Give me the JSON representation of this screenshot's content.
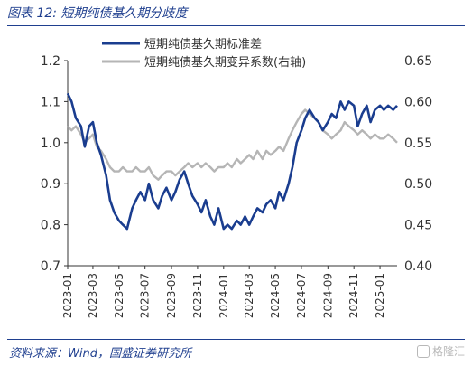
{
  "figure": {
    "title": "图表 12: 短期纯债基久期分歧度",
    "source": "资料来源：Wind，国盛证券研究所",
    "watermark": "格隆汇"
  },
  "colors": {
    "series_primary": "#1a3d8f",
    "series_secondary": "#b5b5b5",
    "title_blue": "#1f3f8f",
    "axis": "#333333"
  },
  "chart_data": {
    "type": "line",
    "x_ticks": [
      "2023-01",
      "2023-03",
      "2023-05",
      "2023-07",
      "2023-09",
      "2023-11",
      "2024-01",
      "2024-03",
      "2024-05",
      "2024-07",
      "2024-09",
      "2024-11",
      "2025-01"
    ],
    "x_range": [
      "2023-01-01",
      "2025-02-10"
    ],
    "y_left": {
      "ylim": [
        0.7,
        1.2
      ],
      "ticks": [
        "0.7",
        "0.8",
        "0.9",
        "1.0",
        "1.1",
        "1.2"
      ]
    },
    "y_right": {
      "ylim": [
        0.4,
        0.65
      ],
      "ticks": [
        "0.40",
        "0.45",
        "0.50",
        "0.55",
        "0.60",
        "0.65"
      ]
    },
    "legend_position": "top-center",
    "series": [
      {
        "name": "短期纯债基久期标准差",
        "axis": "left",
        "points": [
          [
            "2023-01-01",
            1.12
          ],
          [
            "2023-01-10",
            1.1
          ],
          [
            "2023-01-20",
            1.06
          ],
          [
            "2023-02-01",
            1.04
          ],
          [
            "2023-02-10",
            0.99
          ],
          [
            "2023-02-20",
            1.04
          ],
          [
            "2023-03-01",
            1.05
          ],
          [
            "2023-03-10",
            1.0
          ],
          [
            "2023-03-20",
            0.97
          ],
          [
            "2023-04-01",
            0.92
          ],
          [
            "2023-04-10",
            0.86
          ],
          [
            "2023-04-20",
            0.83
          ],
          [
            "2023-05-01",
            0.81
          ],
          [
            "2023-05-10",
            0.8
          ],
          [
            "2023-05-20",
            0.79
          ],
          [
            "2023-06-01",
            0.84
          ],
          [
            "2023-06-10",
            0.86
          ],
          [
            "2023-06-20",
            0.88
          ],
          [
            "2023-07-01",
            0.86
          ],
          [
            "2023-07-10",
            0.9
          ],
          [
            "2023-07-20",
            0.86
          ],
          [
            "2023-08-01",
            0.84
          ],
          [
            "2023-08-10",
            0.87
          ],
          [
            "2023-08-20",
            0.89
          ],
          [
            "2023-09-01",
            0.86
          ],
          [
            "2023-09-10",
            0.88
          ],
          [
            "2023-09-20",
            0.91
          ],
          [
            "2023-10-01",
            0.93
          ],
          [
            "2023-10-10",
            0.9
          ],
          [
            "2023-10-20",
            0.87
          ],
          [
            "2023-11-01",
            0.85
          ],
          [
            "2023-11-10",
            0.83
          ],
          [
            "2023-11-20",
            0.86
          ],
          [
            "2023-12-01",
            0.82
          ],
          [
            "2023-12-10",
            0.8
          ],
          [
            "2023-12-20",
            0.84
          ],
          [
            "2024-01-01",
            0.79
          ],
          [
            "2024-01-10",
            0.8
          ],
          [
            "2024-01-20",
            0.79
          ],
          [
            "2024-02-01",
            0.81
          ],
          [
            "2024-02-10",
            0.8
          ],
          [
            "2024-02-20",
            0.82
          ],
          [
            "2024-03-01",
            0.8
          ],
          [
            "2024-03-10",
            0.82
          ],
          [
            "2024-03-20",
            0.84
          ],
          [
            "2024-04-01",
            0.83
          ],
          [
            "2024-04-10",
            0.85
          ],
          [
            "2024-04-20",
            0.86
          ],
          [
            "2024-05-01",
            0.84
          ],
          [
            "2024-05-10",
            0.88
          ],
          [
            "2024-05-20",
            0.86
          ],
          [
            "2024-06-01",
            0.9
          ],
          [
            "2024-06-10",
            0.94
          ],
          [
            "2024-06-20",
            1.0
          ],
          [
            "2024-07-01",
            1.03
          ],
          [
            "2024-07-10",
            1.06
          ],
          [
            "2024-07-20",
            1.08
          ],
          [
            "2024-08-01",
            1.06
          ],
          [
            "2024-08-10",
            1.05
          ],
          [
            "2024-08-20",
            1.03
          ],
          [
            "2024-09-01",
            1.05
          ],
          [
            "2024-09-10",
            1.07
          ],
          [
            "2024-09-20",
            1.06
          ],
          [
            "2024-10-01",
            1.1
          ],
          [
            "2024-10-10",
            1.08
          ],
          [
            "2024-10-20",
            1.1
          ],
          [
            "2024-11-01",
            1.09
          ],
          [
            "2024-11-10",
            1.04
          ],
          [
            "2024-11-20",
            1.07
          ],
          [
            "2024-12-01",
            1.09
          ],
          [
            "2024-12-10",
            1.05
          ],
          [
            "2024-12-20",
            1.08
          ],
          [
            "2025-01-01",
            1.09
          ],
          [
            "2025-01-10",
            1.08
          ],
          [
            "2025-01-20",
            1.09
          ],
          [
            "2025-02-01",
            1.08
          ],
          [
            "2025-02-10",
            1.09
          ]
        ]
      },
      {
        "name": "短期纯债基久期变异系数(右轴)",
        "axis": "right",
        "points": [
          [
            "2023-01-01",
            0.57
          ],
          [
            "2023-01-10",
            0.565
          ],
          [
            "2023-01-20",
            0.57
          ],
          [
            "2023-02-01",
            0.56
          ],
          [
            "2023-02-10",
            0.55
          ],
          [
            "2023-02-20",
            0.555
          ],
          [
            "2023-03-01",
            0.56
          ],
          [
            "2023-03-10",
            0.545
          ],
          [
            "2023-03-20",
            0.54
          ],
          [
            "2023-04-01",
            0.53
          ],
          [
            "2023-04-10",
            0.52
          ],
          [
            "2023-04-20",
            0.515
          ],
          [
            "2023-05-01",
            0.515
          ],
          [
            "2023-05-10",
            0.52
          ],
          [
            "2023-05-20",
            0.515
          ],
          [
            "2023-06-01",
            0.515
          ],
          [
            "2023-06-10",
            0.52
          ],
          [
            "2023-06-20",
            0.515
          ],
          [
            "2023-07-01",
            0.515
          ],
          [
            "2023-07-10",
            0.52
          ],
          [
            "2023-07-20",
            0.51
          ],
          [
            "2023-08-01",
            0.505
          ],
          [
            "2023-08-10",
            0.51
          ],
          [
            "2023-08-20",
            0.515
          ],
          [
            "2023-09-01",
            0.515
          ],
          [
            "2023-09-10",
            0.51
          ],
          [
            "2023-09-20",
            0.515
          ],
          [
            "2023-10-01",
            0.52
          ],
          [
            "2023-10-10",
            0.525
          ],
          [
            "2023-10-20",
            0.52
          ],
          [
            "2023-11-01",
            0.525
          ],
          [
            "2023-11-10",
            0.52
          ],
          [
            "2023-11-20",
            0.525
          ],
          [
            "2023-12-01",
            0.52
          ],
          [
            "2023-12-10",
            0.515
          ],
          [
            "2023-12-20",
            0.52
          ],
          [
            "2024-01-01",
            0.52
          ],
          [
            "2024-01-10",
            0.525
          ],
          [
            "2024-01-20",
            0.52
          ],
          [
            "2024-02-01",
            0.53
          ],
          [
            "2024-02-10",
            0.525
          ],
          [
            "2024-02-20",
            0.53
          ],
          [
            "2024-03-01",
            0.535
          ],
          [
            "2024-03-10",
            0.53
          ],
          [
            "2024-03-20",
            0.54
          ],
          [
            "2024-04-01",
            0.53
          ],
          [
            "2024-04-10",
            0.54
          ],
          [
            "2024-04-20",
            0.535
          ],
          [
            "2024-05-01",
            0.54
          ],
          [
            "2024-05-10",
            0.545
          ],
          [
            "2024-05-20",
            0.54
          ],
          [
            "2024-06-01",
            0.555
          ],
          [
            "2024-06-10",
            0.565
          ],
          [
            "2024-06-20",
            0.575
          ],
          [
            "2024-07-01",
            0.585
          ],
          [
            "2024-07-10",
            0.59
          ],
          [
            "2024-07-20",
            0.585
          ],
          [
            "2024-08-01",
            0.58
          ],
          [
            "2024-08-10",
            0.575
          ],
          [
            "2024-08-20",
            0.565
          ],
          [
            "2024-09-01",
            0.56
          ],
          [
            "2024-09-10",
            0.555
          ],
          [
            "2024-09-20",
            0.56
          ],
          [
            "2024-10-01",
            0.565
          ],
          [
            "2024-10-10",
            0.575
          ],
          [
            "2024-10-20",
            0.57
          ],
          [
            "2024-11-01",
            0.565
          ],
          [
            "2024-11-10",
            0.56
          ],
          [
            "2024-11-20",
            0.565
          ],
          [
            "2024-12-01",
            0.56
          ],
          [
            "2024-12-10",
            0.555
          ],
          [
            "2024-12-20",
            0.56
          ],
          [
            "2025-01-01",
            0.555
          ],
          [
            "2025-01-10",
            0.555
          ],
          [
            "2025-01-20",
            0.56
          ],
          [
            "2025-02-01",
            0.555
          ],
          [
            "2025-02-10",
            0.55
          ]
        ]
      }
    ]
  }
}
